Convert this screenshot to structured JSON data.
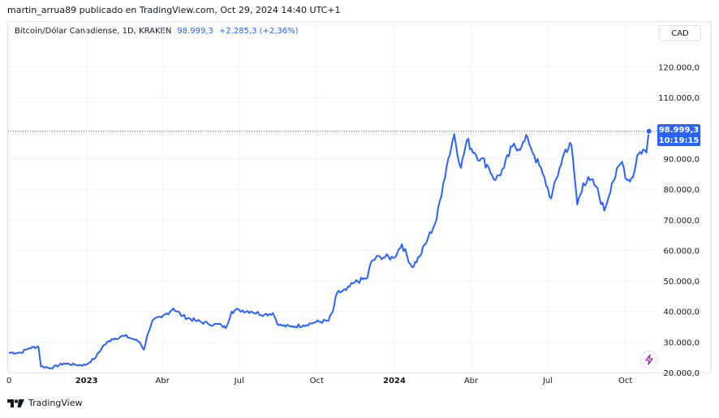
{
  "header": {
    "publisher_line": "martin_arrua89 publicado en TradingView.com, Oct 29, 2024 14:40 UTC+1"
  },
  "legend": {
    "symbol": "Bitcoin/Dólar Canadiense, 1D, KRAKEN",
    "last_price": "98.999,3",
    "change": "+2.285,3 (+2,36%)"
  },
  "currency_button": "CAD",
  "price_tag": {
    "price": "98.999,3",
    "countdown": "10:19:15"
  },
  "footer": {
    "brand": "TradingView"
  },
  "colors": {
    "line": "#2962ff",
    "grid": "#f0f3fa",
    "text": "#131722"
  },
  "icons": [
    "tradingview-logo-icon",
    "lightning-icon"
  ],
  "chart_data": {
    "type": "line",
    "y_range": [
      20000,
      126000
    ],
    "grid": true,
    "y_ticks": [
      {
        "value": 20000,
        "label": "20.000,0"
      },
      {
        "value": 30000,
        "label": "30.000,0"
      },
      {
        "value": 40000,
        "label": "40.000,0"
      },
      {
        "value": 50000,
        "label": "50.000,0"
      },
      {
        "value": 60000,
        "label": "60.000,0"
      },
      {
        "value": 70000,
        "label": "70.000,0"
      },
      {
        "value": 80000,
        "label": "80.000,0"
      },
      {
        "value": 90000,
        "label": "90.000,0"
      },
      {
        "value": 110000,
        "label": "110.000,0"
      },
      {
        "value": 120000,
        "label": "120.000,0"
      }
    ],
    "x_range": [
      "2022-09-30",
      "2024-11-05"
    ],
    "x_ticks": [
      {
        "date": "2022-10-01",
        "label": "0"
      },
      {
        "date": "2023-01-01",
        "label": "2023"
      },
      {
        "date": "2023-04-01",
        "label": "Abr"
      },
      {
        "date": "2023-07-01",
        "label": "Jul"
      },
      {
        "date": "2023-10-01",
        "label": "Oct"
      },
      {
        "date": "2024-01-01",
        "label": "2024"
      },
      {
        "date": "2024-04-01",
        "label": "Abr"
      },
      {
        "date": "2024-07-01",
        "label": "Jul"
      },
      {
        "date": "2024-10-01",
        "label": "Oct"
      }
    ],
    "last_value": 98999.3,
    "series": [
      {
        "points": [
          [
            "2022-10-01",
            26500
          ],
          [
            "2022-10-15",
            26500
          ],
          [
            "2022-10-25",
            28000
          ],
          [
            "2022-11-05",
            28500
          ],
          [
            "2022-11-08",
            22000
          ],
          [
            "2022-11-20",
            21500
          ],
          [
            "2022-12-05",
            23000
          ],
          [
            "2022-12-20",
            22500
          ],
          [
            "2022-12-31",
            22500
          ],
          [
            "2023-01-12",
            25000
          ],
          [
            "2023-01-20",
            28500
          ],
          [
            "2023-01-31",
            31000
          ],
          [
            "2023-02-15",
            32000
          ],
          [
            "2023-02-25",
            31000
          ],
          [
            "2023-03-05",
            30000
          ],
          [
            "2023-03-10",
            27500
          ],
          [
            "2023-03-15",
            33000
          ],
          [
            "2023-03-20",
            37000
          ],
          [
            "2023-03-31",
            38000
          ],
          [
            "2023-04-14",
            41000
          ],
          [
            "2023-04-25",
            38500
          ],
          [
            "2023-05-10",
            37000
          ],
          [
            "2023-05-25",
            36000
          ],
          [
            "2023-06-10",
            35500
          ],
          [
            "2023-06-15",
            34500
          ],
          [
            "2023-06-22",
            40000
          ],
          [
            "2023-07-01",
            40500
          ],
          [
            "2023-07-15",
            40000
          ],
          [
            "2023-07-31",
            39000
          ],
          [
            "2023-08-10",
            39500
          ],
          [
            "2023-08-17",
            35500
          ],
          [
            "2023-08-31",
            35000
          ],
          [
            "2023-09-15",
            35500
          ],
          [
            "2023-09-30",
            36500
          ],
          [
            "2023-10-15",
            37000
          ],
          [
            "2023-10-20",
            40000
          ],
          [
            "2023-10-25",
            46000
          ],
          [
            "2023-11-05",
            47000
          ],
          [
            "2023-11-15",
            49500
          ],
          [
            "2023-11-30",
            51000
          ],
          [
            "2023-12-05",
            56500
          ],
          [
            "2023-12-15",
            58000
          ],
          [
            "2023-12-31",
            57500
          ],
          [
            "2024-01-10",
            62000
          ],
          [
            "2024-01-22",
            54500
          ],
          [
            "2024-01-31",
            58000
          ],
          [
            "2024-02-10",
            64000
          ],
          [
            "2024-02-20",
            70000
          ],
          [
            "2024-02-28",
            82000
          ],
          [
            "2024-03-05",
            90000
          ],
          [
            "2024-03-12",
            98000
          ],
          [
            "2024-03-20",
            87000
          ],
          [
            "2024-03-27",
            96000
          ],
          [
            "2024-04-05",
            92000
          ],
          [
            "2024-04-13",
            90000
          ],
          [
            "2024-04-20",
            88000
          ],
          [
            "2024-04-30",
            83000
          ],
          [
            "2024-05-10",
            87000
          ],
          [
            "2024-05-20",
            94000
          ],
          [
            "2024-05-31",
            94000
          ],
          [
            "2024-06-07",
            97000
          ],
          [
            "2024-06-15",
            91000
          ],
          [
            "2024-06-25",
            85000
          ],
          [
            "2024-07-05",
            77000
          ],
          [
            "2024-07-15",
            87000
          ],
          [
            "2024-07-22",
            93000
          ],
          [
            "2024-07-29",
            94500
          ],
          [
            "2024-08-05",
            75000
          ],
          [
            "2024-08-12",
            82000
          ],
          [
            "2024-08-20",
            83000
          ],
          [
            "2024-08-27",
            81000
          ],
          [
            "2024-09-06",
            73000
          ],
          [
            "2024-09-15",
            82000
          ],
          [
            "2024-09-27",
            89000
          ],
          [
            "2024-10-03",
            83000
          ],
          [
            "2024-10-10",
            84000
          ],
          [
            "2024-10-15",
            91000
          ],
          [
            "2024-10-22",
            93000
          ],
          [
            "2024-10-26",
            92000
          ],
          [
            "2024-10-29",
            98999
          ]
        ]
      }
    ]
  }
}
